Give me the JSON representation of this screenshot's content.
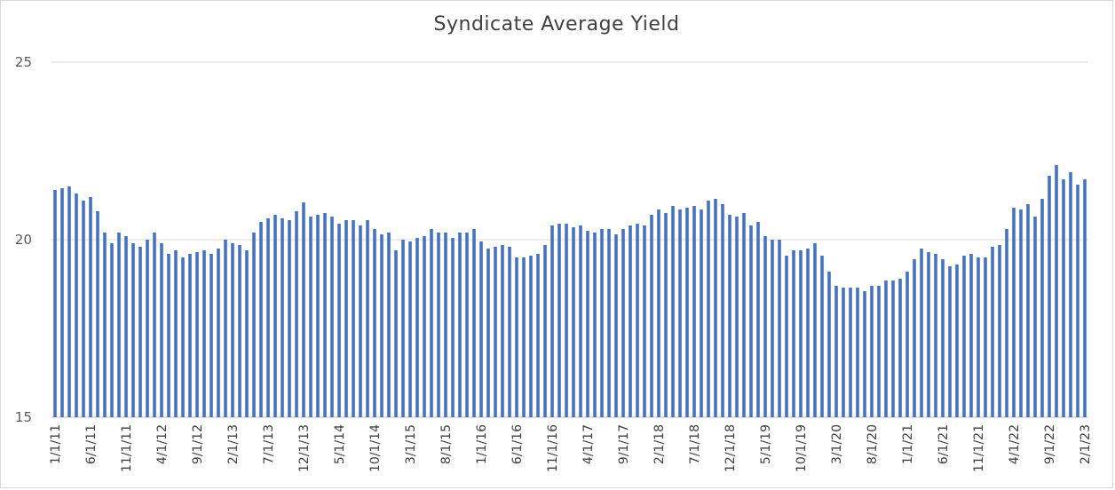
{
  "chart_data": {
    "type": "bar",
    "title": "Syndicate Average Yield",
    "xlabel": "",
    "ylabel": "",
    "ylim": [
      15,
      25
    ],
    "yticks": [
      15,
      20,
      25
    ],
    "grid": true,
    "legend": "none",
    "bar_color": "#4472c4",
    "tick_labels": [
      "1/1/11",
      "6/1/11",
      "11/1/11",
      "4/1/12",
      "9/1/12",
      "2/1/13",
      "7/1/13",
      "12/1/13",
      "5/1/14",
      "10/1/14",
      "3/1/15",
      "8/1/15",
      "1/1/16",
      "6/1/16",
      "11/1/16",
      "4/1/17",
      "9/1/17",
      "2/1/18",
      "7/1/18",
      "12/1/18",
      "5/1/19",
      "10/1/19",
      "3/1/20",
      "8/1/20",
      "1/1/21",
      "6/1/21",
      "11/1/21",
      "4/1/22",
      "9/1/22",
      "2/1/23"
    ],
    "tick_every": 5,
    "values": [
      21.4,
      21.45,
      21.5,
      21.3,
      21.1,
      21.2,
      20.8,
      20.2,
      19.9,
      20.2,
      20.1,
      19.9,
      19.8,
      20.0,
      20.2,
      19.9,
      19.6,
      19.7,
      19.5,
      19.6,
      19.65,
      19.7,
      19.6,
      19.75,
      20.0,
      19.9,
      19.85,
      19.7,
      20.2,
      20.5,
      20.6,
      20.7,
      20.6,
      20.55,
      20.8,
      21.05,
      20.65,
      20.7,
      20.75,
      20.65,
      20.45,
      20.55,
      20.55,
      20.4,
      20.55,
      20.3,
      20.15,
      20.2,
      19.7,
      20.0,
      19.95,
      20.05,
      20.1,
      20.3,
      20.2,
      20.2,
      20.05,
      20.2,
      20.2,
      20.3,
      19.95,
      19.75,
      19.8,
      19.85,
      19.8,
      19.5,
      19.5,
      19.55,
      19.6,
      19.85,
      20.4,
      20.45,
      20.45,
      20.35,
      20.4,
      20.25,
      20.2,
      20.3,
      20.3,
      20.15,
      20.3,
      20.4,
      20.45,
      20.4,
      20.7,
      20.85,
      20.75,
      20.95,
      20.85,
      20.9,
      20.95,
      20.85,
      21.1,
      21.15,
      21.0,
      20.7,
      20.65,
      20.75,
      20.4,
      20.5,
      20.1,
      20.0,
      20.0,
      19.55,
      19.7,
      19.7,
      19.75,
      19.9,
      19.55,
      19.1,
      18.7,
      18.65,
      18.65,
      18.65,
      18.55,
      18.7,
      18.7,
      18.85,
      18.85,
      18.9,
      19.1,
      19.45,
      19.75,
      19.65,
      19.6,
      19.45,
      19.25,
      19.3,
      19.55,
      19.6,
      19.5,
      19.5,
      19.8,
      19.85,
      20.3,
      20.9,
      20.85,
      21.0,
      20.65,
      21.15,
      21.8,
      22.1,
      21.7,
      21.9,
      21.55,
      21.7
    ]
  }
}
